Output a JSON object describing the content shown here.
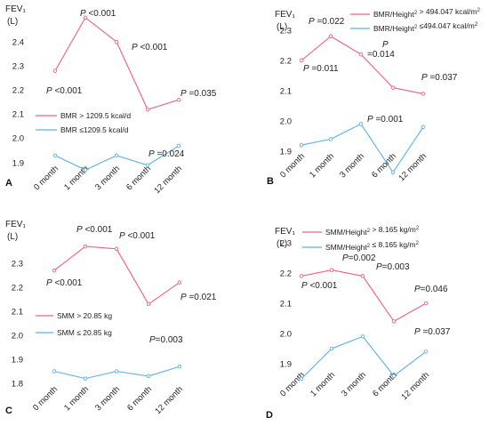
{
  "chart_data": [
    {
      "panel_label": "A",
      "type": "line",
      "ylabel": "FEV₁",
      "yunit": "(L)",
      "ylim": [
        1.82,
        2.58
      ],
      "yticks": [
        "1.9",
        "2.0",
        "2.1",
        "2.2",
        "2.3",
        "2.4"
      ],
      "categories": [
        "0 month",
        "1 month",
        "3 month",
        "6 month",
        "12 month"
      ],
      "legend_position": "middle-left",
      "series": [
        {
          "name": "BMR > 1209.5 kcal/d",
          "color": "#f06088",
          "values": [
            2.28,
            2.5,
            2.4,
            2.12,
            2.16
          ]
        },
        {
          "name": "BMR ≤1209.5 kcal/d",
          "color": "#5ab0e4",
          "values": [
            1.93,
            1.87,
            1.93,
            1.89,
            1.97
          ]
        }
      ],
      "annotations": [
        {
          "prefix": "P",
          "text": " <0.001"
        },
        {
          "prefix": "P",
          "text": " <0.001"
        },
        {
          "prefix": "P",
          "text": " <0.001"
        },
        {
          "prefix": "P",
          "text": " =0.024"
        },
        {
          "prefix": "P",
          "text": " =0.035"
        }
      ]
    },
    {
      "panel_label": "B",
      "type": "line",
      "ylabel": "FEV₁",
      "yunit": "(L)",
      "ylim": [
        1.82,
        2.34
      ],
      "yticks": [
        "1.9",
        "2.0",
        "2.1",
        "2.2",
        "2.3"
      ],
      "categories": [
        "0 month",
        "1 month",
        "3 month",
        "6 month",
        "12 month"
      ],
      "legend_position": "top",
      "series": [
        {
          "name": "BMR/Height² > 494.047 kcal/m²",
          "color": "#f06088",
          "values": [
            2.2,
            2.28,
            2.22,
            2.11,
            2.09
          ]
        },
        {
          "name": "BMR/Height² ≤494.047 kcal/m²",
          "color": "#5ab0e4",
          "values": [
            1.92,
            1.94,
            1.99,
            1.83,
            1.98
          ]
        }
      ],
      "annotations": [
        {
          "prefix": "P",
          "text": " =0.011"
        },
        {
          "prefix": "P",
          "text": " =0.022"
        },
        {
          "prefix": "P",
          "text": ""
        },
        {
          "prefix": "",
          "text": "=0.014"
        },
        {
          "prefix": "P",
          "text": " =0.001"
        },
        {
          "prefix": "P",
          "text": " =0.037"
        }
      ]
    },
    {
      "panel_label": "C",
      "type": "line",
      "ylabel": "FEV₁",
      "yunit": "(L)",
      "ylim": [
        1.78,
        2.42
      ],
      "yticks": [
        "1.8",
        "1.9",
        "2.0",
        "2.1",
        "2.2",
        "2.3"
      ],
      "categories": [
        "0 month",
        "1 month",
        "3 month",
        "6 month",
        "12 month"
      ],
      "legend_position": "middle-left",
      "series": [
        {
          "name": "SMM > 20.85 kg",
          "color": "#f06088",
          "values": [
            2.27,
            2.37,
            2.36,
            2.13,
            2.22
          ]
        },
        {
          "name": "SMM ≤ 20.85 kg",
          "color": "#5ab0e4",
          "values": [
            1.85,
            1.82,
            1.85,
            1.83,
            1.87
          ]
        }
      ],
      "annotations": [
        {
          "prefix": "P",
          "text": " <0.001"
        },
        {
          "prefix": "P",
          "text": " <0.001"
        },
        {
          "prefix": "P",
          "text": " <0.001"
        },
        {
          "prefix": "P",
          "text": "=0.003"
        },
        {
          "prefix": "P",
          "text": " =0.021"
        }
      ]
    },
    {
      "panel_label": "D",
      "type": "line",
      "ylabel": "FEV₁",
      "yunit": "(L)",
      "ylim": [
        1.82,
        2.34
      ],
      "yticks": [
        "1.9",
        "2.0",
        "2.1",
        "2.2",
        "2.3"
      ],
      "categories": [
        "0 month",
        "1 month",
        "3 month",
        "6 month",
        "12 month"
      ],
      "legend_position": "top",
      "series": [
        {
          "name": "SMM/Height² > 8.165 kg/m²",
          "color": "#f06088",
          "values": [
            2.19,
            2.21,
            2.19,
            2.04,
            2.1
          ]
        },
        {
          "name": "SMM/Height² ≤ 8.165 kg/m²",
          "color": "#5ab0e4",
          "values": [
            1.85,
            1.95,
            1.99,
            1.86,
            1.94
          ]
        }
      ],
      "annotations": [
        {
          "prefix": "P",
          "text": " <0.001"
        },
        {
          "prefix": "P",
          "text": "=0.002"
        },
        {
          "prefix": "P",
          "text": "=0.003"
        },
        {
          "prefix": "P",
          "text": "=0.046"
        },
        {
          "prefix": "P",
          "text": " =0.037"
        }
      ]
    }
  ]
}
